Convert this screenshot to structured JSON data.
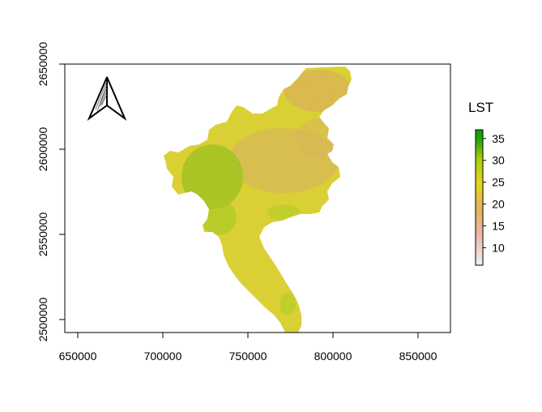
{
  "chart_data": {
    "type": "raster-map",
    "title": "",
    "xlabel": "",
    "ylabel": "",
    "xlim": [
      643000,
      870000
    ],
    "ylim": [
      2493000,
      2650000
    ],
    "x_ticks": [
      650000,
      700000,
      750000,
      800000,
      850000
    ],
    "y_ticks": [
      2500000,
      2550000,
      2600000,
      2650000
    ],
    "x_tick_labels": [
      "650000",
      "700000",
      "750000",
      "800000",
      "850000"
    ],
    "y_tick_labels": [
      "2500000",
      "2550000",
      "2600000",
      "2650000"
    ],
    "grid": false,
    "north_arrow": true,
    "legend": {
      "title": "LST",
      "placement": "right",
      "range": [
        6,
        37
      ],
      "ticks": [
        10,
        15,
        20,
        25,
        30,
        35
      ],
      "tick_labels": [
        "10",
        "15",
        "20",
        "25",
        "30",
        "35"
      ],
      "colors": [
        "#f2f2f2",
        "#eab8a8",
        "#e8b15c",
        "#e6d61a",
        "#a8d010",
        "#2da508",
        "#00a600"
      ]
    },
    "colors": {
      "dominant": "#dccf32",
      "warm_north": "#dcb255",
      "cool_west": "#9ec11c",
      "south": "#d7d63a"
    }
  }
}
